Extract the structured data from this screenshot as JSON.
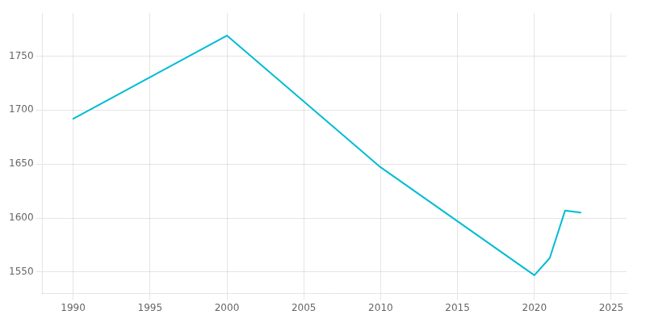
{
  "chart_data": {
    "type": "line",
    "x": [
      1990,
      2000,
      2010,
      2020,
      2021,
      2022,
      2023
    ],
    "values": [
      1692,
      1769,
      1647,
      1547,
      1563,
      1607,
      1605
    ],
    "color": "#00BCD4",
    "xlim": [
      1988,
      2026
    ],
    "ylim": [
      1530,
      1790
    ],
    "xticks": [
      1990,
      1995,
      2000,
      2005,
      2010,
      2015,
      2020,
      2025
    ],
    "yticks": [
      1550,
      1600,
      1650,
      1700,
      1750
    ],
    "grid": true
  }
}
